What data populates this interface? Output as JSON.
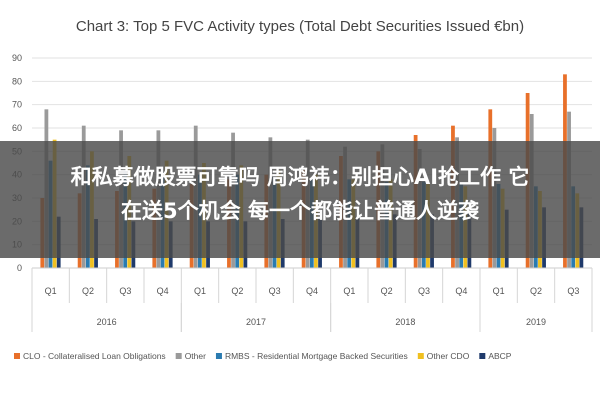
{
  "chart_data": {
    "type": "bar",
    "title": "Chart 3: Top 5 FVC Activity types (Total Debt Securities Issued €bn)",
    "xlabel": "",
    "ylabel": "",
    "ylim": [
      0,
      90
    ],
    "yticks": [
      0,
      10,
      20,
      30,
      40,
      50,
      60,
      70,
      80,
      90
    ],
    "grid": true,
    "legend": "bottom",
    "categories": [
      "Q1",
      "Q2",
      "Q3",
      "Q4",
      "Q1",
      "Q2",
      "Q3",
      "Q4",
      "Q1",
      "Q2",
      "Q3",
      "Q4",
      "Q1",
      "Q2",
      "Q3"
    ],
    "groups": [
      {
        "label": "2016",
        "start": 0,
        "count": 4
      },
      {
        "label": "2017",
        "start": 4,
        "count": 4
      },
      {
        "label": "2018",
        "start": 8,
        "count": 4
      },
      {
        "label": "2019",
        "start": 12,
        "count": 3
      }
    ],
    "series": [
      {
        "name": "CLO - Collateralised Loan Obligations",
        "color": "#e8702a",
        "values": [
          30,
          32,
          33,
          34,
          36,
          38,
          40,
          42,
          48,
          50,
          57,
          61,
          68,
          75,
          83
        ]
      },
      {
        "name": "Other",
        "color": "#9a9a9a",
        "values": [
          68,
          61,
          59,
          59,
          61,
          58,
          56,
          55,
          52,
          53,
          51,
          56,
          60,
          66,
          67
        ]
      },
      {
        "name": "RMBS - Residential Mortgage Backed Securities",
        "color": "#2a7bb0",
        "values": [
          46,
          44,
          42,
          41,
          40,
          40,
          39,
          38,
          38,
          37,
          37,
          36,
          36,
          35,
          35
        ]
      },
      {
        "name": "Other CDO",
        "color": "#f0c020",
        "values": [
          55,
          50,
          48,
          46,
          45,
          44,
          42,
          40,
          38,
          38,
          36,
          35,
          34,
          33,
          32
        ]
      },
      {
        "name": "ABCP",
        "color": "#1f3a6b",
        "values": [
          22,
          21,
          20,
          20,
          20,
          20,
          21,
          22,
          22,
          23,
          23,
          24,
          25,
          26,
          26
        ]
      }
    ]
  },
  "overlay": {
    "line1": "和私募做股票可靠吗 周鸿祎：别担心AI抢工作 它",
    "line2": "在送5个机会 每一个都能让普通人逆袭"
  }
}
